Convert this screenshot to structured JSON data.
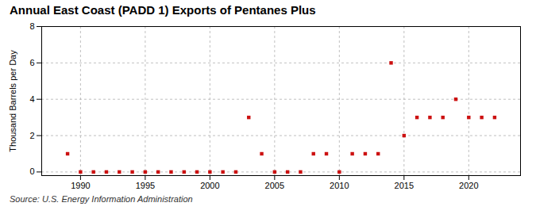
{
  "chart_data": {
    "type": "scatter",
    "title": "Annual East Coast (PADD 1) Exports of Pentanes Plus",
    "ylabel": "Thousand Barrels per Day",
    "annotations": [
      "Source: U.S. Energy Information Administration"
    ],
    "x": [
      1989,
      1990,
      1991,
      1992,
      1993,
      1994,
      1995,
      1996,
      1997,
      1998,
      1999,
      2000,
      2001,
      2002,
      2003,
      2004,
      2005,
      2006,
      2007,
      2008,
      2009,
      2010,
      2011,
      2012,
      2013,
      2014,
      2015,
      2016,
      2017,
      2018,
      2019,
      2020,
      2021,
      2022
    ],
    "values": [
      1,
      0,
      0,
      0,
      0,
      0,
      0,
      0,
      0,
      0,
      0,
      0,
      0,
      0,
      3,
      1,
      0,
      0,
      0,
      1,
      1,
      0,
      1,
      1,
      1,
      6,
      2,
      3,
      3,
      3,
      4,
      3,
      3,
      3
    ],
    "color": "#cc1111",
    "marker": "square",
    "xlim": [
      1987,
      2024
    ],
    "xticks": [
      1990,
      1995,
      2000,
      2005,
      2010,
      2015,
      2020
    ],
    "ylim": [
      -0.2,
      8
    ],
    "yticks": [
      0,
      2,
      4,
      6,
      8
    ],
    "grid": true
  }
}
